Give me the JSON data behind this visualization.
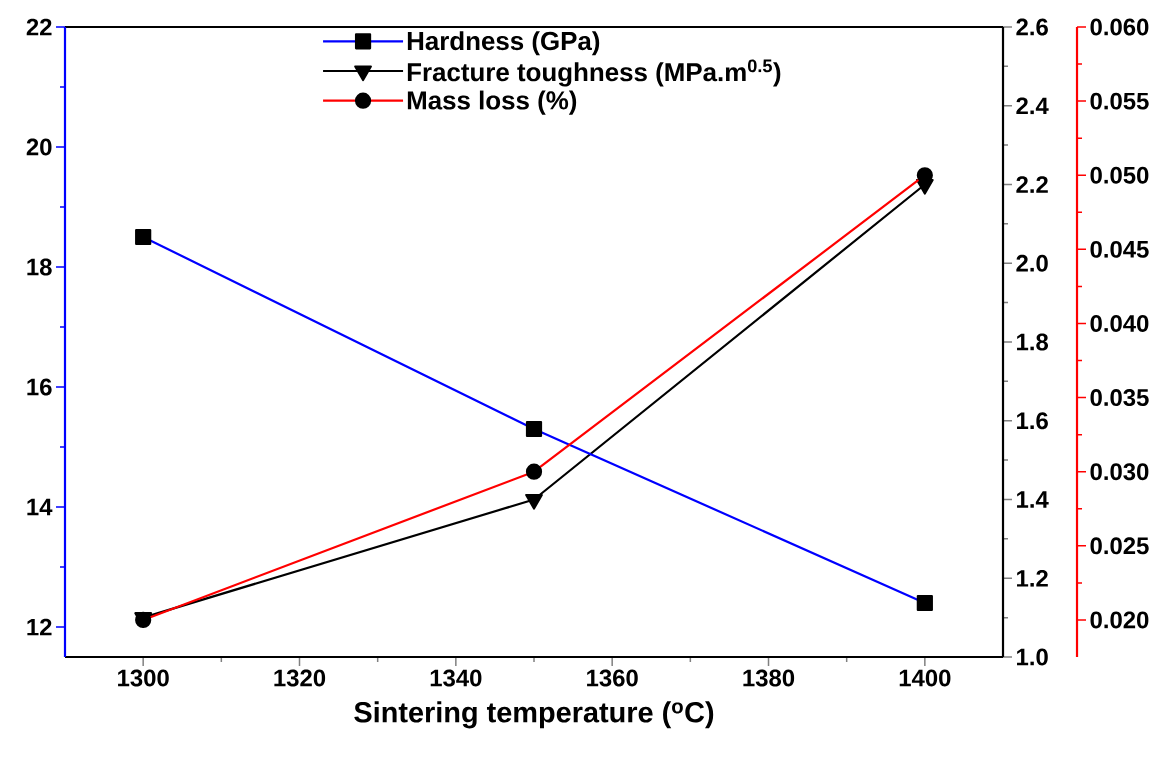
{
  "chart_data": {
    "type": "line",
    "xlabel": "Sintering temperature ($^{o}$C)",
    "x": [
      1300,
      1350,
      1400
    ],
    "xlim": [
      1290,
      1410
    ],
    "xticks": [
      1300,
      1320,
      1340,
      1360,
      1380,
      1400
    ],
    "ylim": [
      11.5,
      22
    ],
    "yticks": [
      12,
      14,
      16,
      18,
      20,
      22
    ],
    "y2lim": [
      1.0,
      2.6
    ],
    "y2ticks": [
      {
        "value": 1.0,
        "label": "1.0"
      },
      1.2,
      1.4,
      1.6,
      1.8,
      {
        "value": 2.0,
        "label": "2.0"
      },
      2.2,
      2.4,
      2.6
    ],
    "y3lim": [
      0.0175,
      0.06
    ],
    "y3ticks": [
      {
        "value": 0.02,
        "label": "0.020"
      },
      {
        "value": 0.025,
        "label": "0.025"
      },
      {
        "value": 0.03,
        "label": "0.030"
      },
      {
        "value": 0.035,
        "label": "0.035"
      },
      {
        "value": 0.04,
        "label": "0.040"
      },
      {
        "value": 0.045,
        "label": "0.045"
      },
      {
        "value": 0.05,
        "label": "0.050"
      },
      {
        "value": 0.055,
        "label": "0.055"
      },
      {
        "value": 0.06,
        "label": "0.060"
      }
    ],
    "legend": "top",
    "line_style": "solid",
    "series": [
      {
        "name": "Hardness (GPa)",
        "color": "#0000ff",
        "marker": "square",
        "values": [
          18.5,
          15.3,
          12.4
        ]
      },
      {
        "name": "Fracture toughness (MPa.m$^{0.5}$)",
        "color": "#000000",
        "marker": "triangle",
        "axis": "y2",
        "values": [
          1.1,
          1.4,
          2.2
        ]
      },
      {
        "name": "Mass loss (%)",
        "color": "#ff0000",
        "marker": "circle",
        "axis": "y3",
        "values": [
          0.02,
          0.03,
          0.05
        ]
      }
    ]
  }
}
